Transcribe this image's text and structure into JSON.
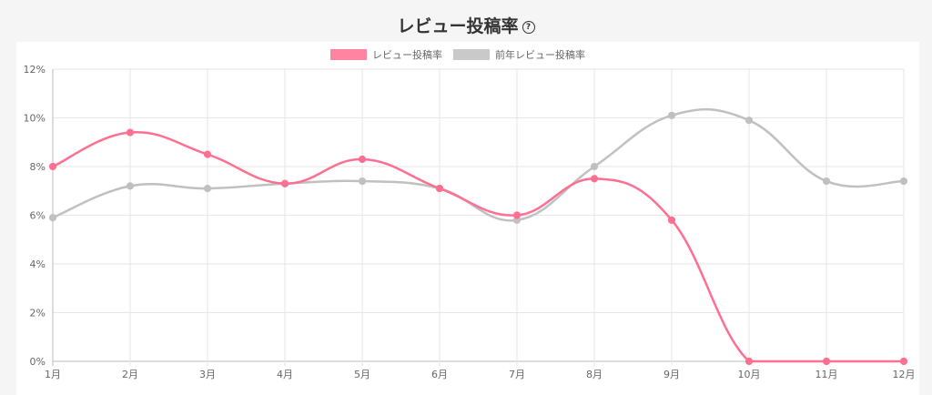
{
  "header": {
    "title": "レビュー投稿率",
    "help_icon": "question-circle-icon"
  },
  "chart_data": {
    "type": "line",
    "categories": [
      "1月",
      "2月",
      "3月",
      "4月",
      "5月",
      "6月",
      "7月",
      "8月",
      "9月",
      "10月",
      "11月",
      "12月"
    ],
    "series": [
      {
        "name": "レビュー投稿率",
        "values": [
          8.0,
          9.4,
          8.5,
          7.3,
          8.3,
          7.1,
          6.0,
          7.5,
          5.8,
          0,
          0,
          0
        ],
        "color": "#ff6f91"
      },
      {
        "name": "前年レビュー投稿率",
        "values": [
          5.9,
          7.2,
          7.1,
          7.3,
          7.4,
          7.1,
          5.8,
          8.0,
          10.1,
          9.9,
          7.4,
          7.4
        ],
        "color": "#c0c0c0"
      }
    ],
    "yticks": [
      "0%",
      "2%",
      "4%",
      "6%",
      "8%",
      "10%",
      "12%"
    ],
    "ylim": [
      0,
      12
    ],
    "grid": true,
    "legend": "top-center",
    "xlabel": "",
    "ylabel": ""
  }
}
